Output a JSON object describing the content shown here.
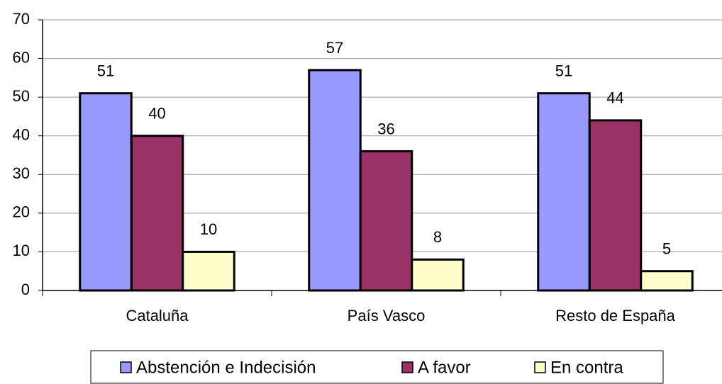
{
  "chart_data": {
    "type": "bar",
    "categories": [
      "Cataluña",
      "País Vasco",
      "Resto de España"
    ],
    "series": [
      {
        "name": "Abstención e Indecisión",
        "color": "#9999ff",
        "values": [
          51,
          57,
          51
        ]
      },
      {
        "name": "A favor",
        "color": "#993366",
        "values": [
          40,
          36,
          44
        ]
      },
      {
        "name": "En contra",
        "color": "#ffffcc",
        "values": [
          10,
          8,
          5
        ]
      }
    ],
    "ylim": [
      0,
      70
    ],
    "yticks": [
      0,
      10,
      20,
      30,
      40,
      50,
      60,
      70
    ],
    "grid": true,
    "legend": "bottom"
  }
}
